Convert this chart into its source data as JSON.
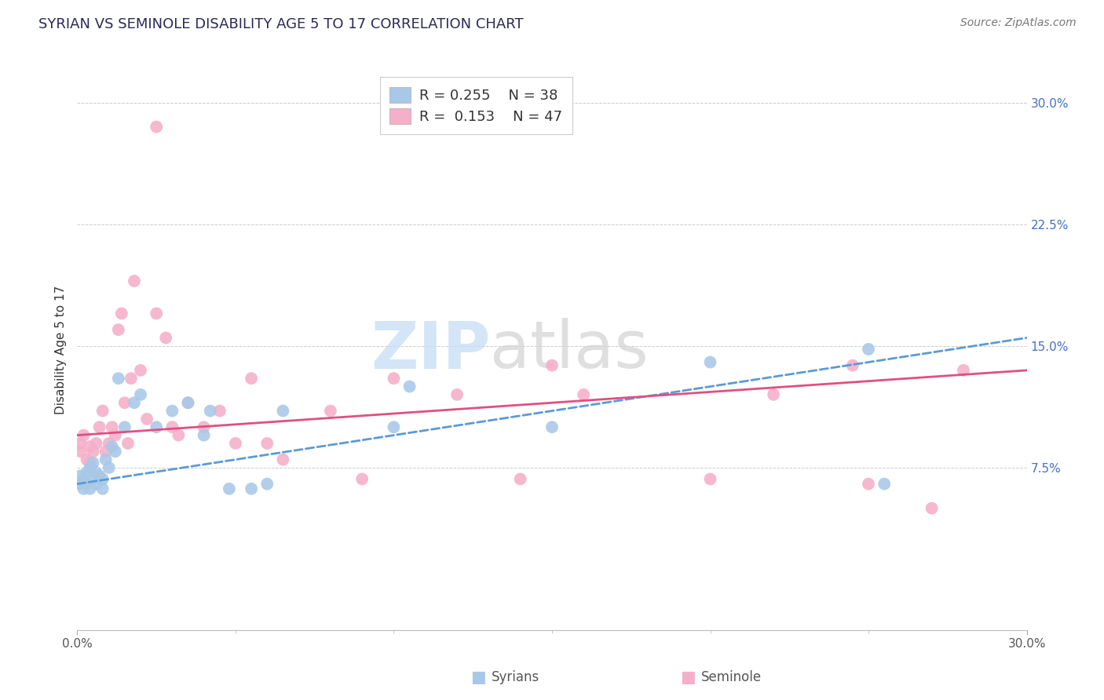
{
  "title": "SYRIAN VS SEMINOLE DISABILITY AGE 5 TO 17 CORRELATION CHART",
  "source": "Source: ZipAtlas.com",
  "ylabel": "Disability Age 5 to 17",
  "xlabel_syrians": "Syrians",
  "xlabel_seminole": "Seminole",
  "xlim": [
    0.0,
    0.3
  ],
  "ylim": [
    -0.025,
    0.32
  ],
  "r_syrian": 0.255,
  "n_syrian": 38,
  "r_seminole": 0.153,
  "n_seminole": 47,
  "color_syrian": "#a8c8e8",
  "color_seminole": "#f5afc8",
  "line_color_syrian": "#5b9bd5",
  "line_color_seminole": "#e05080",
  "title_color": "#2a2a5a",
  "tick_color_y": "#4472c4",
  "tick_color_x": "#555555",
  "background_color": "#ffffff",
  "grid_color": "#cccccc",
  "syr_line_start": 0.065,
  "syr_line_end": 0.155,
  "sem_line_start": 0.095,
  "sem_line_end": 0.135,
  "syrians_x": [
    0.001,
    0.001,
    0.002,
    0.002,
    0.003,
    0.003,
    0.004,
    0.004,
    0.005,
    0.005,
    0.006,
    0.006,
    0.007,
    0.008,
    0.008,
    0.009,
    0.01,
    0.011,
    0.012,
    0.013,
    0.015,
    0.018,
    0.02,
    0.025,
    0.03,
    0.035,
    0.04,
    0.042,
    0.048,
    0.055,
    0.06,
    0.065,
    0.1,
    0.105,
    0.15,
    0.2,
    0.25,
    0.255
  ],
  "syrians_y": [
    0.065,
    0.07,
    0.068,
    0.062,
    0.065,
    0.072,
    0.075,
    0.062,
    0.068,
    0.078,
    0.065,
    0.072,
    0.07,
    0.062,
    0.068,
    0.08,
    0.075,
    0.088,
    0.085,
    0.13,
    0.1,
    0.115,
    0.12,
    0.1,
    0.11,
    0.115,
    0.095,
    0.11,
    0.062,
    0.062,
    0.065,
    0.11,
    0.1,
    0.125,
    0.1,
    0.14,
    0.148,
    0.065
  ],
  "seminole_x": [
    0.001,
    0.001,
    0.002,
    0.003,
    0.004,
    0.004,
    0.005,
    0.006,
    0.007,
    0.008,
    0.009,
    0.01,
    0.011,
    0.012,
    0.013,
    0.014,
    0.015,
    0.016,
    0.017,
    0.018,
    0.02,
    0.022,
    0.025,
    0.028,
    0.03,
    0.032,
    0.035,
    0.04,
    0.045,
    0.05,
    0.055,
    0.06,
    0.065,
    0.08,
    0.09,
    0.1,
    0.12,
    0.14,
    0.16,
    0.2,
    0.22,
    0.245,
    0.25,
    0.27,
    0.28,
    0.025,
    0.15
  ],
  "seminole_y": [
    0.085,
    0.09,
    0.095,
    0.08,
    0.078,
    0.088,
    0.085,
    0.09,
    0.1,
    0.11,
    0.085,
    0.09,
    0.1,
    0.095,
    0.16,
    0.17,
    0.115,
    0.09,
    0.13,
    0.19,
    0.135,
    0.105,
    0.17,
    0.155,
    0.1,
    0.095,
    0.115,
    0.1,
    0.11,
    0.09,
    0.13,
    0.09,
    0.08,
    0.11,
    0.068,
    0.13,
    0.12,
    0.068,
    0.12,
    0.068,
    0.12,
    0.138,
    0.065,
    0.05,
    0.135,
    0.285,
    0.138
  ]
}
